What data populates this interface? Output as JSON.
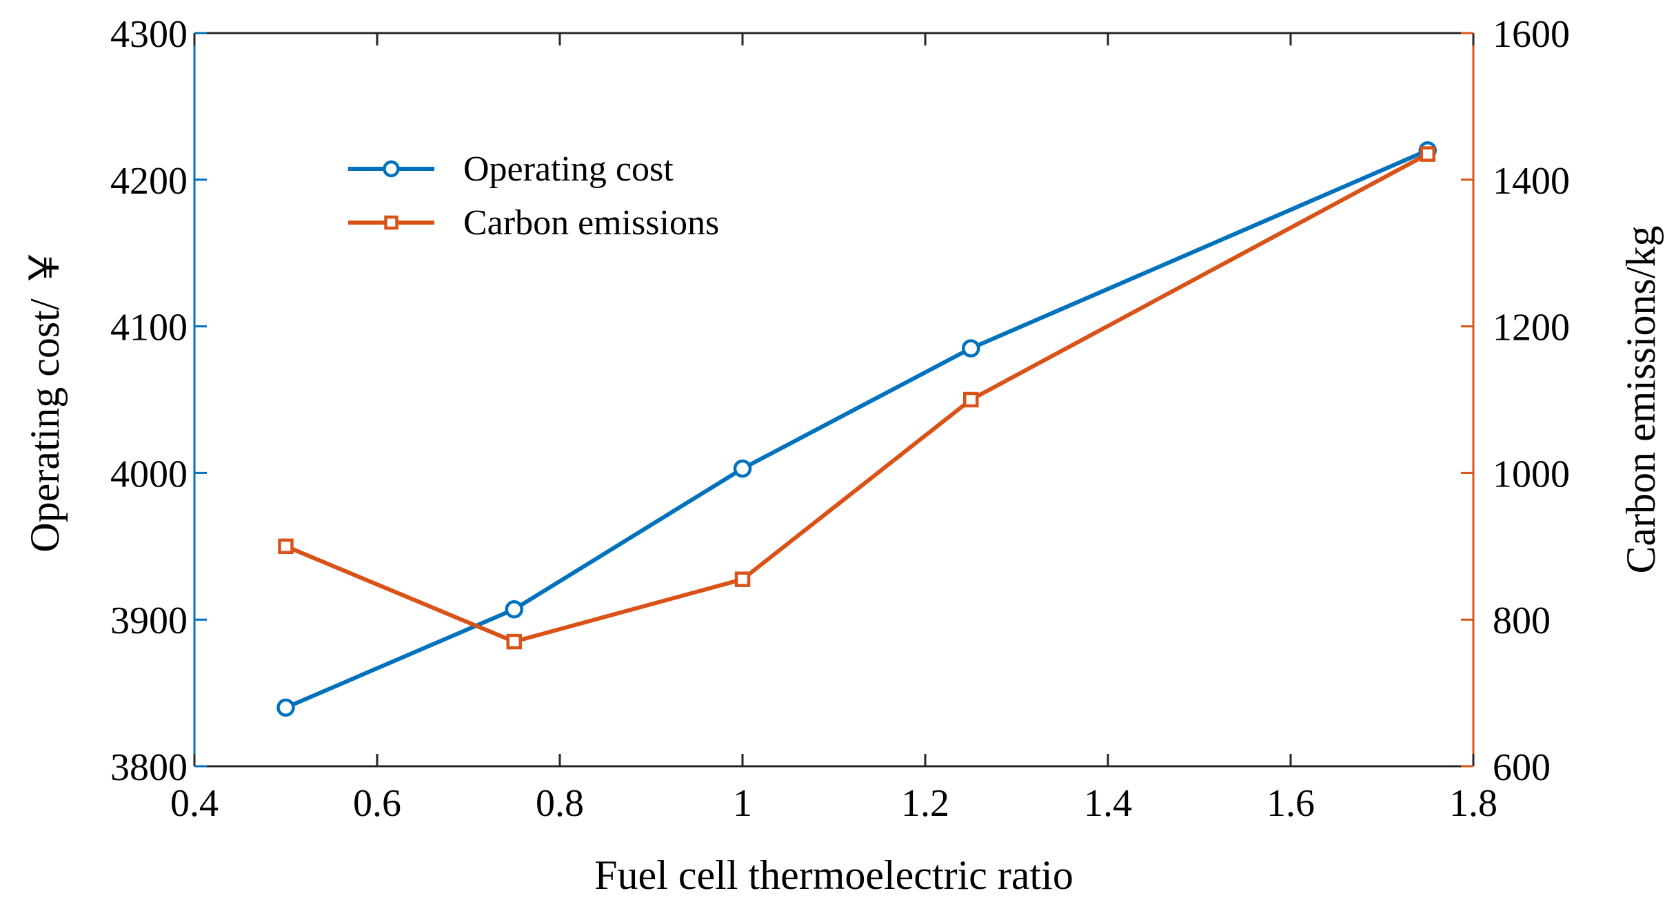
{
  "chart_data": {
    "type": "line",
    "title": "",
    "xlabel": "Fuel cell thermoelectric ratio",
    "ylabel_left": "Operating cost/ ￥",
    "ylabel_right": "Carbon emissions/kg",
    "xlim": [
      0.4,
      1.8
    ],
    "ylim_left": [
      3800,
      4300
    ],
    "ylim_right": [
      600,
      1600
    ],
    "x_ticks": [
      "0.4",
      "0.6",
      "0.8",
      "1",
      "1.2",
      "1.4",
      "1.6",
      "1.8"
    ],
    "x_tick_values": [
      0.4,
      0.6,
      0.8,
      1.0,
      1.2,
      1.4,
      1.6,
      1.8
    ],
    "y_left_ticks": [
      "3800",
      "3900",
      "4000",
      "4100",
      "4200",
      "4300"
    ],
    "y_left_tick_values": [
      3800,
      3900,
      4000,
      4100,
      4200,
      4300
    ],
    "y_right_ticks": [
      "600",
      "800",
      "1000",
      "1200",
      "1400",
      "1600"
    ],
    "y_right_tick_values": [
      600,
      800,
      1000,
      1200,
      1400,
      1600
    ],
    "grid": false,
    "legend_position": "top-left",
    "series": [
      {
        "name": "Operating cost",
        "axis": "left",
        "marker": "circle",
        "color": "#0072BD",
        "x": [
          0.5,
          0.75,
          1.0,
          1.25,
          1.75
        ],
        "values": [
          3840,
          3907,
          4003,
          4085,
          4220
        ]
      },
      {
        "name": "Carbon emissions",
        "axis": "right",
        "marker": "square",
        "color": "#D95319",
        "x": [
          0.5,
          0.75,
          1.0,
          1.25,
          1.75
        ],
        "values": [
          900,
          770,
          855,
          1100,
          1435
        ]
      }
    ]
  }
}
